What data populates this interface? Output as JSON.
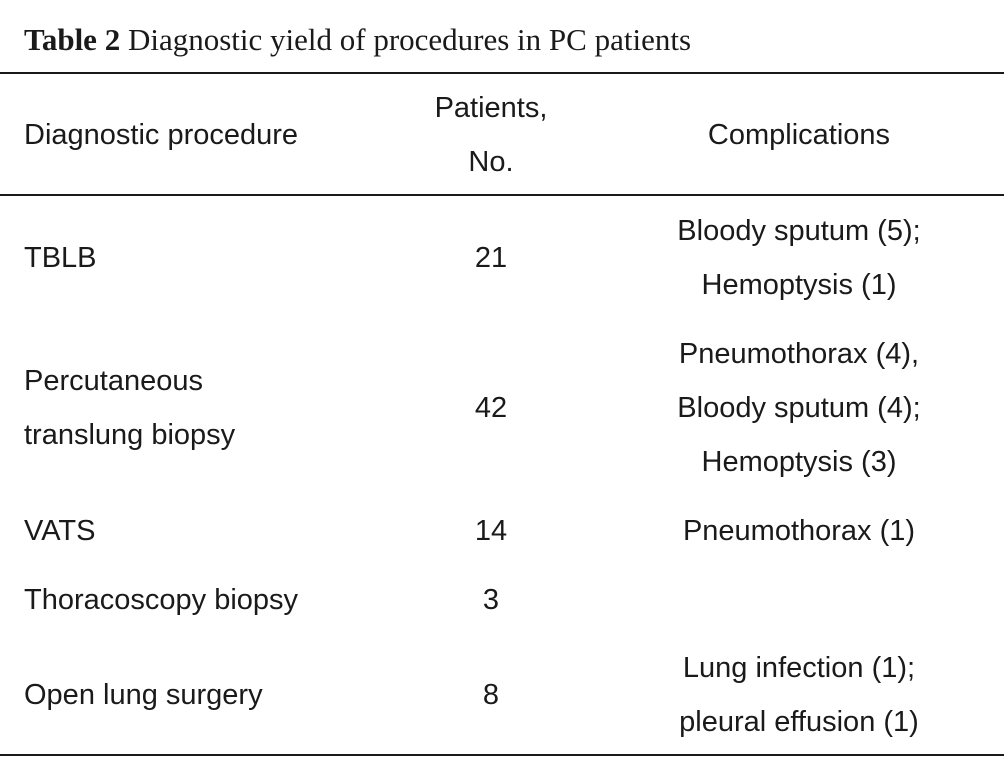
{
  "caption": {
    "label": "Table 2",
    "title": "Diagnostic yield of procedures in PC patients"
  },
  "table": {
    "headers": {
      "procedure": "Diagnostic procedure",
      "patients_line1": "Patients,",
      "patients_line2": "No.",
      "complications": "Complications"
    },
    "rows": [
      {
        "procedure": [
          "TBLB"
        ],
        "patients": "21",
        "complications": [
          "Bloody sputum (5);",
          "Hemoptysis (1)"
        ]
      },
      {
        "procedure": [
          "Percutaneous",
          "translung biopsy"
        ],
        "patients": "42",
        "complications": [
          "Pneumothorax (4),",
          "Bloody sputum (4);",
          "Hemoptysis (3)"
        ]
      },
      {
        "procedure": [
          "VATS"
        ],
        "patients": "14",
        "complications": [
          "Pneumothorax (1)"
        ]
      },
      {
        "procedure": [
          "Thoracoscopy biopsy"
        ],
        "patients": "3",
        "complications": []
      },
      {
        "procedure": [
          "Open lung surgery"
        ],
        "patients": "8",
        "complications": [
          "Lung infection (1);",
          "pleural effusion (1)"
        ]
      }
    ]
  }
}
